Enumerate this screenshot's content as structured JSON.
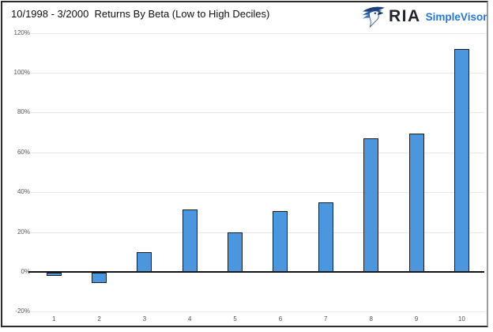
{
  "header": {
    "title": "10/1998 - 3/2000  Returns By Beta (Low to High Deciles)"
  },
  "logo": {
    "brand": "RIA",
    "product": "SimpleVisor",
    "brand_color": "#23242c",
    "product_color": "#2777cf",
    "icon": "eagle-icon"
  },
  "chart_data": {
    "type": "bar",
    "title": "10/1998 - 3/2000  Returns By Beta (Low to High Deciles)",
    "xlabel": "",
    "ylabel": "",
    "categories": [
      "1",
      "2",
      "3",
      "4",
      "5",
      "6",
      "7",
      "8",
      "9",
      "10"
    ],
    "values": [
      -1.5,
      -5,
      10,
      31.5,
      19.7,
      30.5,
      35,
      67,
      69.5,
      112
    ],
    "ylim": [
      -20,
      120
    ],
    "yticks": [
      {
        "value": 120,
        "label": "120%"
      },
      {
        "value": 100,
        "label": "100%"
      },
      {
        "value": 80,
        "label": "80%"
      },
      {
        "value": 60,
        "label": "60%"
      },
      {
        "value": 40,
        "label": "40%"
      },
      {
        "value": 20,
        "label": "20%"
      },
      {
        "value": 0,
        "label": "0%"
      },
      {
        "value": -20,
        "label": "-20%"
      }
    ],
    "grid": "horizontal",
    "legend": "none",
    "bar_fill": "#4b96dc",
    "bar_border": "#1c1c1c"
  }
}
